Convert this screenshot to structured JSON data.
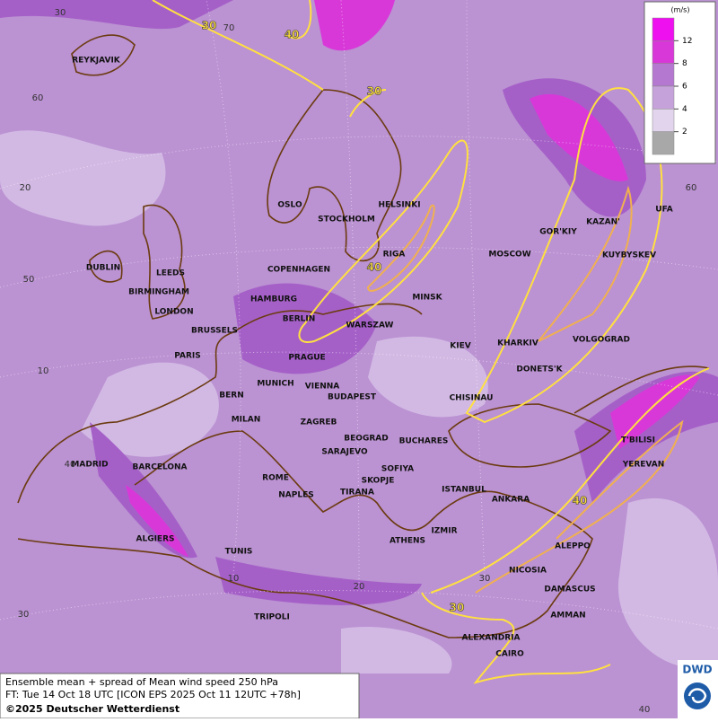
{
  "legend": {
    "unit": "(m/s)",
    "ticks": [
      12,
      8,
      6,
      4,
      2
    ]
  },
  "cities": [
    "REYKJAVIK",
    "OSLO",
    "STOCKHOLM",
    "HELSINKI",
    "RIGA",
    "COPENHAGEN",
    "DUBLIN",
    "LEEDS",
    "BIRMINGHAM",
    "LONDON",
    "HAMBURG",
    "BERLIN",
    "MINSK",
    "MOSCOW",
    "GOR'KIY",
    "KAZAN'",
    "UFA",
    "KUYBYSKEV",
    "WARSZAW",
    "BRUSSELS",
    "PARIS",
    "PRAGUE",
    "KIEV",
    "KHARKIV",
    "VOLGOGRAD",
    "DONETS'K",
    "MUNICH",
    "VIENNA",
    "BERN",
    "BUDAPEST",
    "CHISINAU",
    "MILAN",
    "ZAGREB",
    "BEOGRAD",
    "BUCHARES",
    "T'BILISI",
    "SARAJEVO",
    "MADRID",
    "BARCELONA",
    "ROME",
    "SOFIYA",
    "YEREVAN",
    "SKOPJE",
    "NAPLES",
    "TIRANA",
    "ISTANBUL",
    "ANKARA",
    "IZMIR",
    "ALGIERS",
    "ATHENS",
    "ALEPPO",
    "TUNIS",
    "NICOSIA",
    "DAMASCUS",
    "TRIPOLI",
    "AMMAN",
    "ALEXANDRIA",
    "CAIRO"
  ],
  "contour_labels": [
    "30",
    "40",
    "30",
    "40",
    "40",
    "30"
  ],
  "grid_labels": [
    "30",
    "70",
    "60",
    "20",
    "60",
    "50",
    "10",
    "40",
    "30",
    "10",
    "20",
    "30",
    "40"
  ],
  "footer": {
    "line1": "Ensemble mean + spread of Mean wind speed 250 hPa",
    "line2": "FT: Tue 14 Oct 18 UTC [ICON EPS 2025 Oct 11 12UTC +78h]",
    "line3": "©2025 Deutscher Wetterdienst"
  },
  "logo": "DWD"
}
